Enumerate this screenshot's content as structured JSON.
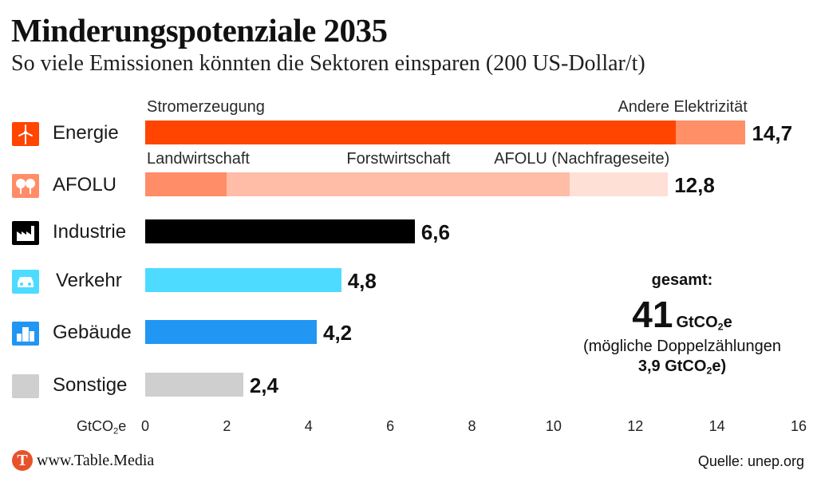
{
  "header": {
    "title": "Minderungspotenziale 2035",
    "subtitle": "So viele Emissionen könnten die Sektoren einsparen (200 US-Dollar/t)"
  },
  "chart_data": {
    "type": "bar",
    "orientation": "horizontal",
    "stacked": true,
    "xlim": [
      0,
      16
    ],
    "xticks": [
      "0",
      "2",
      "4",
      "6",
      "8",
      "10",
      "12",
      "14",
      "16"
    ],
    "xlabel_prefix": "GtCO",
    "xlabel_sub": "2",
    "xlabel_suffix": "e",
    "grid": false,
    "categories": [
      "Energie",
      "AFOLU",
      "Industrie",
      "Verkehr",
      "Gebäude",
      "Sonstige"
    ],
    "icons": [
      "wind-turbine-icon",
      "trees-icon",
      "factory-icon",
      "car-icon",
      "buildings-icon",
      "sonstige-icon"
    ],
    "totals_labels": [
      "14,7",
      "12,8",
      "6,6",
      "4,8",
      "4,2",
      "2,4"
    ],
    "rows": [
      {
        "category": "Energie",
        "color": "#ff4500",
        "segments": [
          {
            "name": "Stromerzeugung",
            "value": 13.0,
            "color": "#ff4500"
          },
          {
            "name": "Andere Elektrizität",
            "value": 1.7,
            "color": "#ff8f66"
          }
        ]
      },
      {
        "category": "AFOLU",
        "color": "#ff8d68",
        "segments": [
          {
            "name": "Landwirtschaft",
            "value": 2.0,
            "color": "#ff8d68"
          },
          {
            "name": "Forstwirtschaft",
            "value": 8.4,
            "color": "#ffbca6"
          },
          {
            "name": "AFOLU (Nachfrageseite)",
            "value": 2.4,
            "color": "#ffe0d6"
          }
        ]
      },
      {
        "category": "Industrie",
        "color": "#000000",
        "segments": [
          {
            "value": 6.6,
            "color": "#000000"
          }
        ]
      },
      {
        "category": "Verkehr",
        "color": "#4ddcff",
        "segments": [
          {
            "value": 4.8,
            "color": "#4ddcff"
          }
        ]
      },
      {
        "category": "Gebäude",
        "color": "#2196f3",
        "segments": [
          {
            "value": 4.2,
            "color": "#2196f3"
          }
        ]
      },
      {
        "category": "Sonstige",
        "color": "#cfcfcf",
        "segments": [
          {
            "value": 2.4,
            "color": "#cfcfcf"
          }
        ]
      }
    ],
    "annotation": {
      "label": "gesamt:",
      "total": "41",
      "unit_prefix": "GtCO",
      "unit_sub": "2",
      "unit_suffix": "e",
      "note": "(mögliche Doppelzählungen",
      "dup_value": "3,9 GtCO",
      "dup_sub": "2",
      "dup_suffix": "e)"
    }
  },
  "footer": {
    "logo_letter": "T",
    "brand": "www.Table.Media",
    "source": "Quelle: unep.org"
  }
}
